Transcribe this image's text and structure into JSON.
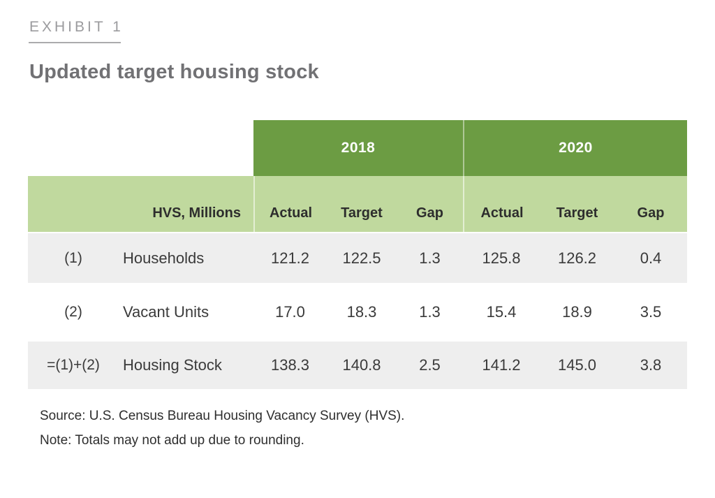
{
  "exhibit": {
    "label": "EXHIBIT 1",
    "title": "Updated target housing stock"
  },
  "table": {
    "corner_label": "HVS, Millions",
    "year_groups": [
      {
        "label": "2018"
      },
      {
        "label": "2020"
      }
    ],
    "sub_headers": [
      "Actual",
      "Target",
      "Gap",
      "Actual",
      "Target",
      "Gap"
    ],
    "rows": [
      {
        "id": "(1)",
        "label": "Households",
        "values": [
          "121.2",
          "122.5",
          "1.3",
          "125.8",
          "126.2",
          "0.4"
        ]
      },
      {
        "id": "(2)",
        "label": "Vacant Units",
        "values": [
          "17.0",
          "18.3",
          "1.3",
          "15.4",
          "18.9",
          "3.5"
        ]
      },
      {
        "id": "=(1)+(2)",
        "label": "Housing Stock",
        "values": [
          "138.3",
          "140.8",
          "2.5",
          "141.2",
          "145.0",
          "3.8"
        ]
      }
    ]
  },
  "footer": {
    "source": "Source: U.S. Census Bureau Housing Vacancy Survey (HVS).",
    "note": "Note: Totals may not add up due to rounding."
  },
  "colors": {
    "dark_green": "#6c9c43",
    "light_green": "#c0d99e",
    "row_stripe_gray": "#eeeeee",
    "title_gray": "#717174",
    "exhibit_label_gray": "#9b9b9e"
  }
}
